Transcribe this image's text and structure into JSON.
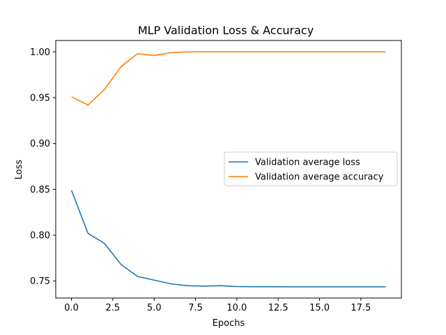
{
  "chart_data": {
    "type": "line",
    "title": "MLP Validation Loss & Accuracy",
    "xlabel": "Epochs",
    "ylabel": "Loss",
    "xlim": [
      -0.95,
      19.95
    ],
    "ylim": [
      0.7315,
      1.0124
    ],
    "xticks": [
      {
        "value": 0,
        "label": "0.0"
      },
      {
        "value": 2.5,
        "label": "2.5"
      },
      {
        "value": 5,
        "label": "5.0"
      },
      {
        "value": 7.5,
        "label": "7.5"
      },
      {
        "value": 10,
        "label": "10.0"
      },
      {
        "value": 12.5,
        "label": "12.5"
      },
      {
        "value": 15,
        "label": "15.0"
      },
      {
        "value": 17.5,
        "label": "17.5"
      }
    ],
    "yticks": [
      {
        "value": 0.75,
        "label": "0.75"
      },
      {
        "value": 0.8,
        "label": "0.80"
      },
      {
        "value": 0.85,
        "label": "0.85"
      },
      {
        "value": 0.9,
        "label": "0.90"
      },
      {
        "value": 0.95,
        "label": "0.95"
      },
      {
        "value": 1.0,
        "label": "1.00"
      }
    ],
    "x": [
      0,
      1,
      2,
      3,
      4,
      5,
      6,
      7,
      8,
      9,
      10,
      11,
      12,
      13,
      14,
      15,
      16,
      17,
      18,
      19
    ],
    "grid": false,
    "legend_position": "center-right",
    "series": [
      {
        "name": "Validation average loss",
        "color": "#1f77b4",
        "values": [
          0.849,
          0.802,
          0.791,
          0.768,
          0.755,
          0.751,
          0.747,
          0.745,
          0.7445,
          0.745,
          0.744,
          0.7438,
          0.7438,
          0.7437,
          0.7437,
          0.7437,
          0.7437,
          0.7437,
          0.7437,
          0.7437
        ]
      },
      {
        "name": "Validation average accuracy",
        "color": "#ff7f0e",
        "values": [
          0.951,
          0.942,
          0.959,
          0.984,
          0.998,
          0.996,
          0.999,
          1.0,
          1.0,
          1.0,
          1.0,
          1.0,
          1.0,
          1.0,
          1.0,
          1.0,
          1.0,
          1.0,
          1.0,
          1.0
        ]
      }
    ]
  }
}
